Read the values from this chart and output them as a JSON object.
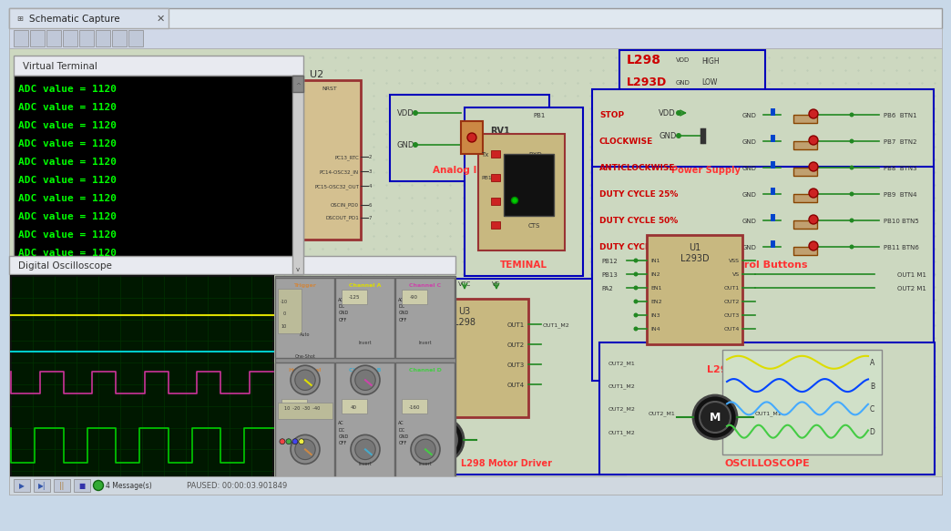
{
  "bg_color": "#c8d8e8",
  "grid_color": "#b0c8d8",
  "title_bar_text": "Schematic Capture",
  "virtual_terminal": {
    "title": "Virtual Terminal",
    "text_color": "#00ff00",
    "lines": [
      "ADC value = 1120",
      "ADC value = 1120",
      "ADC value = 1120",
      "ADC value = 1120",
      "ADC value = 1120",
      "ADC value = 1120",
      "ADC value = 1120",
      "ADC value = 1120",
      "ADC value = 1120",
      "ADC value = 1120"
    ]
  },
  "oscilloscope": {
    "title": "Digital Oscilloscope",
    "screen_bg": "#001800",
    "grid_color": "#003300"
  },
  "status_text": "PAUSED: 00:00:03.901849",
  "schematic_bg": "#cdd8c0",
  "btn_labels": [
    "STOP",
    "CLOCKWISE",
    "ANTICLOCKWISE",
    "DUTY CYCLE 25%",
    "DUTY CYCLE 50%",
    "DUTY CYCLE 75%"
  ],
  "btn_pins": [
    "PB6  BTN1",
    "PB7  BTN2",
    "PB8  BTN3",
    "PB9  BTN4",
    "PB10 BTN5",
    "PB11 BTN6"
  ],
  "wave_colors_osc": [
    "#dddd00",
    "#0044ff",
    "#44aaff",
    "#44cc44"
  ],
  "osc_wave_labels": [
    "OUT2_M1",
    "OUT1_M2",
    "OUT2_M2",
    "OUT1_M2"
  ],
  "osc_ch_labels": [
    "A",
    "B",
    "C",
    "D"
  ]
}
